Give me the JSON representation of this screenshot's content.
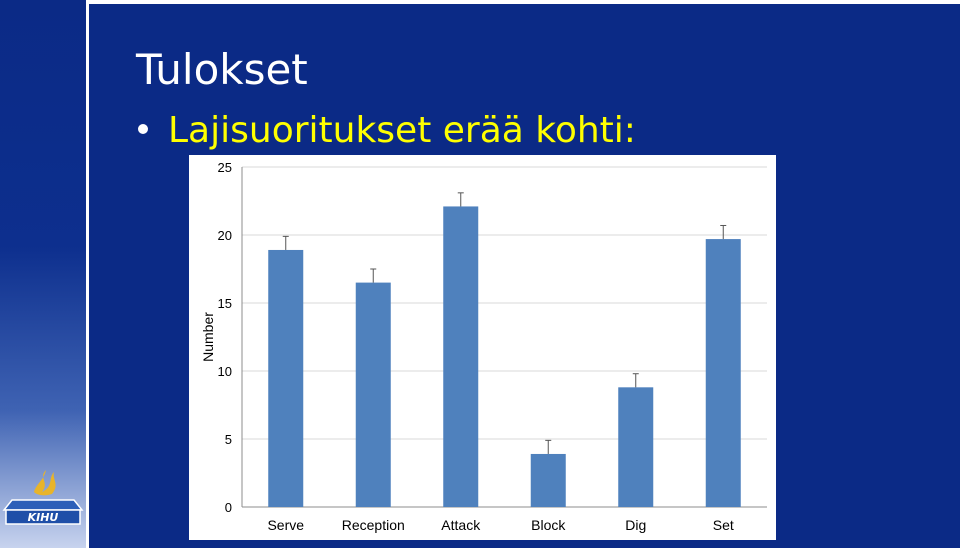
{
  "slide": {
    "title": "Tulokset",
    "bullet": "Lajisuoritukset erää kohti:",
    "background_color": "#0b2a86",
    "bullet_text_color": "#ffff00"
  },
  "logo": {
    "text": "KIHU"
  },
  "chart_data": {
    "type": "bar",
    "categories": [
      "Serve",
      "Reception",
      "Attack",
      "Block",
      "Dig",
      "Set"
    ],
    "values": [
      18.9,
      16.5,
      22.1,
      3.9,
      8.8,
      19.7
    ],
    "error_upper": [
      1.0,
      1.0,
      1.0,
      1.0,
      1.0,
      1.0
    ],
    "title": "",
    "xlabel": "",
    "ylabel": "Number",
    "ylim": [
      0,
      25
    ],
    "yticks": [
      0,
      5,
      10,
      15,
      20,
      25
    ],
    "grid": true,
    "bar_color": "#4f81bd"
  }
}
